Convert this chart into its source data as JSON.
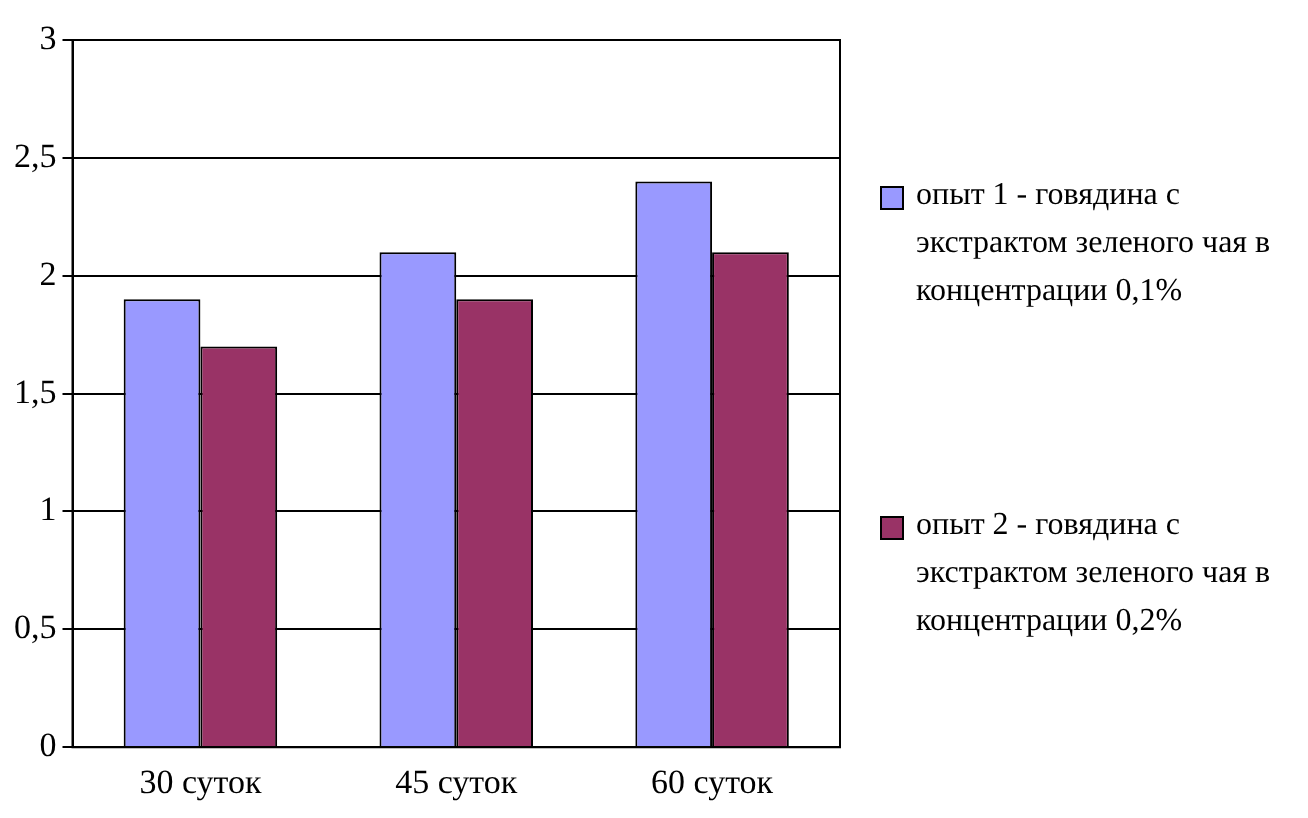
{
  "chart_data": {
    "type": "bar",
    "categories": [
      "30 суток",
      "45 суток",
      "60 суток"
    ],
    "series": [
      {
        "name": "опыт 1 - говядина с экстрактом зеленого чая в концентрации 0,1%",
        "color": "#9999ff",
        "values": [
          1.9,
          2.1,
          2.4
        ]
      },
      {
        "name": "опыт 2 - говядина с экстрактом зеленого чая в концентрации 0,2%",
        "color": "#993366",
        "values": [
          1.7,
          1.9,
          2.1
        ]
      }
    ],
    "ylim": [
      0,
      3
    ],
    "yticks": [
      {
        "value": 0,
        "label": "0"
      },
      {
        "value": 0.5,
        "label": "0,5"
      },
      {
        "value": 1,
        "label": "1"
      },
      {
        "value": 1.5,
        "label": "1,5"
      },
      {
        "value": 2,
        "label": "2"
      },
      {
        "value": 2.5,
        "label": "2,5"
      },
      {
        "value": 3,
        "label": "3"
      }
    ],
    "grid": "y",
    "legend": "right"
  }
}
